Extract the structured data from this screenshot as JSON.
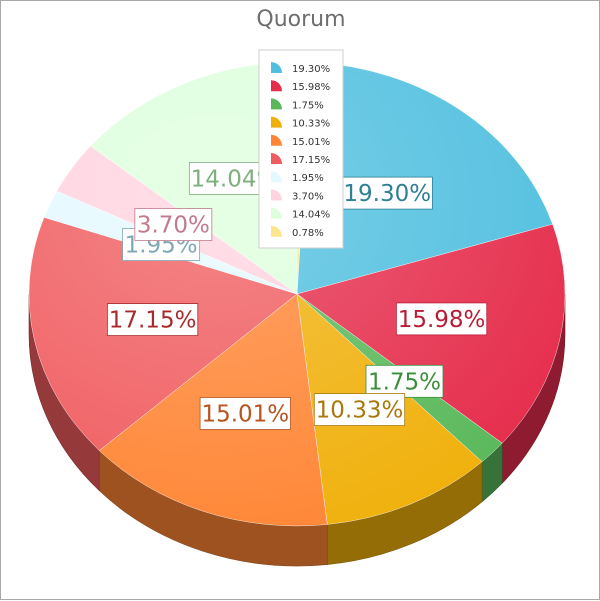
{
  "chart_data": {
    "type": "pie",
    "title": "Quorum",
    "style": "3d",
    "legend_position": "top-center",
    "slices": [
      {
        "label": "19.30%",
        "value": 19.3,
        "color": "#4fbfdf",
        "text_color": "#2f7f95"
      },
      {
        "label": "15.98%",
        "value": 15.98,
        "color": "#e52c4b",
        "text_color": "#b81c36"
      },
      {
        "label": "1.75%",
        "value": 1.75,
        "color": "#59b85a",
        "text_color": "#3a8f3b"
      },
      {
        "label": "10.33%",
        "value": 10.33,
        "color": "#f0b00a",
        "text_color": "#a8790a"
      },
      {
        "label": "15.01%",
        "value": 15.01,
        "color": "#ff8534",
        "text_color": "#b85420"
      },
      {
        "label": "17.15%",
        "value": 17.15,
        "color": "#f05c5f",
        "text_color": "#a82a2d"
      },
      {
        "label": "1.95%",
        "value": 1.95,
        "color": "#e4f9ff",
        "text_color": "#7fa8b3"
      },
      {
        "label": "3.70%",
        "value": 3.7,
        "color": "#ffd3df",
        "text_color": "#c27a8d"
      },
      {
        "label": "14.04%",
        "value": 14.04,
        "color": "#ddffdd",
        "text_color": "#7fae7f"
      },
      {
        "label": "0.78%",
        "value": 0.78,
        "color": "#ffe58a",
        "text_color": "#c9a64a"
      }
    ]
  }
}
